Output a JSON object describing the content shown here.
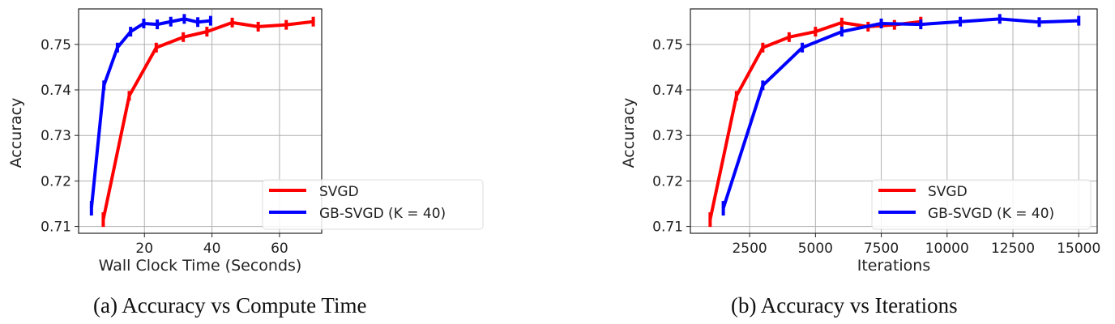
{
  "chart_data": [
    {
      "type": "line",
      "caption": "(a) Accuracy vs Compute Time",
      "title": "",
      "xlabel": "Wall Clock Time (Seconds)",
      "ylabel": "Accuracy",
      "xlim": [
        0.5,
        72.5
      ],
      "ylim": [
        0.7085,
        0.7578
      ],
      "xticks": [
        20,
        40,
        60
      ],
      "yticks": [
        0.71,
        0.72,
        0.73,
        0.74,
        0.75
      ],
      "ytick_labels": [
        "0.71",
        "0.72",
        "0.73",
        "0.74",
        "0.75"
      ],
      "grid": true,
      "legend_position": "lower right",
      "series": [
        {
          "name": "SVGD",
          "color": "#ff0000",
          "x": [
            7.8,
            15.5,
            23.5,
            31.5,
            38.5,
            46,
            53.7,
            62,
            70
          ],
          "y": [
            0.7115,
            0.7387,
            0.7493,
            0.7516,
            0.7528,
            0.7548,
            0.7539,
            0.7543,
            0.755
          ]
        },
        {
          "name": "GB-SVGD (K = 40)",
          "color": "#0000ff",
          "x": [
            4.3,
            8.0,
            12.0,
            15.9,
            19.8,
            23.8,
            27.8,
            31.8,
            35.8,
            39.6
          ],
          "y": [
            0.714,
            0.741,
            0.7493,
            0.7528,
            0.7546,
            0.7544,
            0.755,
            0.7556,
            0.7549,
            0.7552
          ]
        }
      ]
    },
    {
      "type": "line",
      "caption": "(b) Accuracy vs Iterations",
      "title": "",
      "xlabel": "Iterations",
      "ylabel": "Accuracy",
      "xlim": [
        250,
        15700
      ],
      "ylim": [
        0.7085,
        0.7578
      ],
      "xticks": [
        2500,
        5000,
        7500,
        10000,
        12500,
        15000
      ],
      "yticks": [
        0.71,
        0.72,
        0.73,
        0.74,
        0.75
      ],
      "ytick_labels": [
        "0.71",
        "0.72",
        "0.73",
        "0.74",
        "0.75"
      ],
      "grid": true,
      "legend_position": "lower right",
      "series": [
        {
          "name": "SVGD",
          "color": "#ff0000",
          "x": [
            1000,
            2000,
            3000,
            4000,
            5000,
            6000,
            7000,
            8000,
            9000
          ],
          "y": [
            0.7115,
            0.7387,
            0.7493,
            0.7516,
            0.7528,
            0.7548,
            0.7539,
            0.7543,
            0.755
          ]
        },
        {
          "name": "GB-SVGD (K = 40)",
          "color": "#0000ff",
          "x": [
            1500,
            3000,
            4500,
            6000,
            7500,
            9000,
            10500,
            12000,
            13500,
            15000
          ],
          "y": [
            0.714,
            0.741,
            0.7493,
            0.7528,
            0.7546,
            0.7544,
            0.755,
            0.7556,
            0.7549,
            0.7552
          ]
        }
      ]
    }
  ],
  "legend": {
    "svgd": "SVGD",
    "gbsvgd": "GB-SVGD (K = 40)"
  },
  "captions": {
    "a": "(a) Accuracy vs Compute Time",
    "b": "(b) Accuracy vs Iterations"
  },
  "axes": {
    "a": {
      "xlabel": "Wall Clock Time (Seconds)",
      "ylabel": "Accuracy",
      "xtick_labels": [
        "20",
        "40",
        "60"
      ],
      "ytick_labels": [
        "0.71",
        "0.72",
        "0.73",
        "0.74",
        "0.75"
      ]
    },
    "b": {
      "xlabel": "Iterations",
      "ylabel": "Accuracy",
      "xtick_labels": [
        "2500",
        "5000",
        "7500",
        "10000",
        "12500",
        "15000"
      ],
      "ytick_labels": [
        "0.71",
        "0.72",
        "0.73",
        "0.74",
        "0.75"
      ]
    }
  }
}
